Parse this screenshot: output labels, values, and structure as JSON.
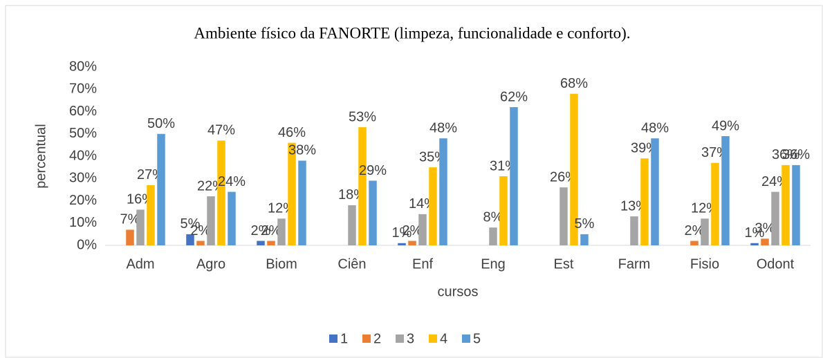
{
  "chart_data": {
    "type": "bar",
    "title": "Ambiente físico da FANORTE (limpeza, funcionalidade e conforto).",
    "x_label": "cursos",
    "y_label": "percentual",
    "categories": [
      "Adm",
      "Agro",
      "Biom",
      "Ciên",
      "Enf",
      "Eng",
      "Est",
      "Farm",
      "Fisio",
      "Odont"
    ],
    "series": [
      {
        "name": "1",
        "color": "#4472c4",
        "values": [
          null,
          5,
          2,
          null,
          1,
          null,
          null,
          null,
          null,
          1
        ],
        "value_labels": [
          null,
          "5%",
          "2%",
          null,
          "1%",
          null,
          null,
          null,
          null,
          "1%"
        ]
      },
      {
        "name": "2",
        "color": "#ed7d31",
        "values": [
          7,
          2,
          2,
          null,
          2,
          null,
          null,
          null,
          2,
          3
        ],
        "value_labels": [
          "7%",
          "2%",
          "2%",
          null,
          "2%",
          null,
          null,
          null,
          "2%",
          "3%"
        ]
      },
      {
        "name": "3",
        "color": "#a5a5a5",
        "values": [
          16,
          22,
          12,
          18,
          14,
          8,
          26,
          13,
          12,
          24
        ],
        "value_labels": [
          "16%",
          "22%",
          "12%",
          "18%",
          "14%",
          "8%",
          "26%",
          "13%",
          "12%",
          "24%"
        ]
      },
      {
        "name": "4",
        "color": "#ffc000",
        "values": [
          27,
          47,
          46,
          53,
          35,
          31,
          68,
          39,
          37,
          36
        ],
        "value_labels": [
          "27%",
          "47%",
          "46%",
          "53%",
          "35%",
          "31%",
          "68%",
          "39%",
          "37%",
          "36%"
        ]
      },
      {
        "name": "5",
        "color": "#5b9bd5",
        "values": [
          50,
          24,
          38,
          29,
          48,
          62,
          5,
          48,
          49,
          36
        ],
        "value_labels": [
          "50%",
          "24%",
          "38%",
          "29%",
          "48%",
          "62%",
          "5%",
          "48%",
          "49%",
          "36%"
        ]
      }
    ],
    "ylim": [
      0,
      80
    ],
    "yticks": [
      {
        "value": 0,
        "label": "0%"
      },
      {
        "value": 10,
        "label": "10%"
      },
      {
        "value": 20,
        "label": "20%"
      },
      {
        "value": 30,
        "label": "30%"
      },
      {
        "value": 40,
        "label": "40%"
      },
      {
        "value": 50,
        "label": "50%"
      },
      {
        "value": 60,
        "label": "60%"
      },
      {
        "value": 70,
        "label": "70%"
      },
      {
        "value": 80,
        "label": "80%"
      }
    ],
    "grid": false,
    "legend": "bottom"
  }
}
